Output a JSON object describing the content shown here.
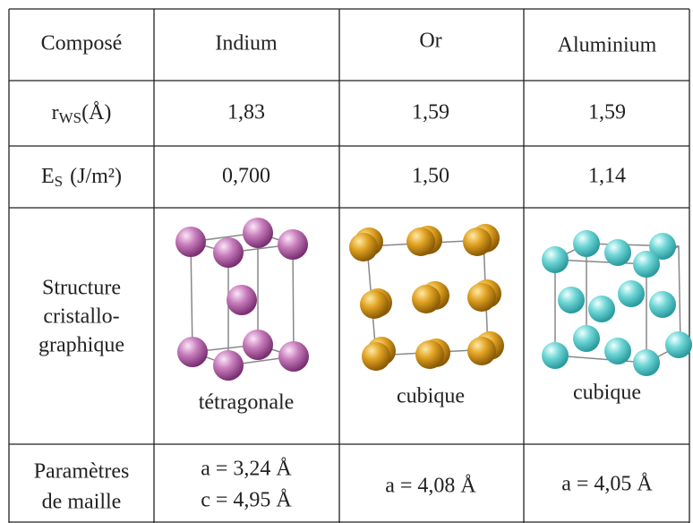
{
  "table": {
    "header": [
      "Composé",
      "Indium",
      "Or",
      "Aluminium"
    ],
    "rows": [
      {
        "label": {
          "symbol": "r",
          "subscript": "WS",
          "unit": "(Å)"
        },
        "cells": [
          "1,83",
          "1,59",
          "1,59"
        ]
      },
      {
        "label": {
          "symbol": "E",
          "subscript": "S",
          "unit": "(J/m²)"
        },
        "cells": [
          "0,700",
          "1,50",
          "1,14"
        ]
      },
      {
        "label": [
          "Structure",
          "cristallo-",
          "graphique"
        ],
        "cells": [
          "tétragonale",
          "cubique",
          "cubique"
        ]
      },
      {
        "label": [
          "Paramètres",
          "de maille"
        ],
        "cells": [
          [
            "a = 3,24 Å",
            "c = 4,95 Å"
          ],
          [
            "a = 4,08 Å"
          ],
          [
            "a = 4,05 Å"
          ]
        ]
      }
    ]
  }
}
